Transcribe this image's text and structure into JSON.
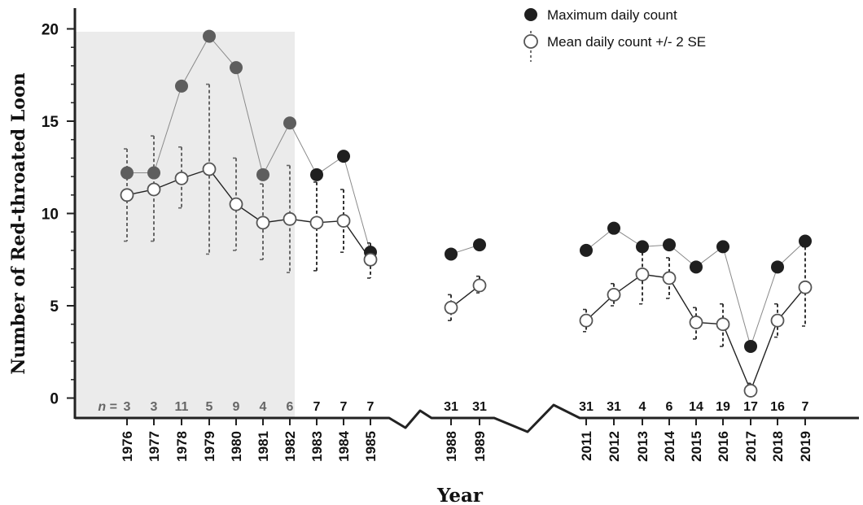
{
  "chart_data": {
    "type": "scatter",
    "title": "",
    "xlabel": "Year",
    "ylabel": "Number of  Red-throated Loon",
    "ylim": [
      0,
      20
    ],
    "yticks": [
      "0",
      "5",
      "10",
      "15",
      "20"
    ],
    "categories": [
      "1976",
      "1977",
      "1978",
      "1979",
      "1980",
      "1981",
      "1982",
      "1983",
      "1984",
      "1985",
      "1988",
      "1989",
      "2011",
      "2012",
      "2013",
      "2014",
      "2015",
      "2016",
      "2017",
      "2018",
      "2019"
    ],
    "n_prefix": "n",
    "n_equals": " = ",
    "n": [
      "3",
      "3",
      "11",
      "5",
      "9",
      "4",
      "6",
      "7",
      "7",
      "7",
      "31",
      "31",
      "31",
      "31",
      "4",
      "6",
      "14",
      "19",
      "17",
      "16",
      "7"
    ],
    "shaded_period": [
      "1976",
      "1982"
    ],
    "axis_breaks": [
      "1985-1988",
      "1989-2011"
    ],
    "series": [
      {
        "name": "Maximum daily count",
        "marker": "filled",
        "values": [
          12.2,
          12.2,
          16.9,
          19.6,
          17.9,
          12.1,
          14.9,
          12.1,
          13.1,
          7.9,
          7.8,
          8.3,
          8.0,
          9.2,
          8.2,
          8.3,
          7.1,
          8.2,
          2.8,
          7.1,
          8.5
        ]
      },
      {
        "name": "Mean daily count +/- 2 SE",
        "marker": "open",
        "values": [
          11.0,
          11.3,
          11.9,
          12.4,
          10.5,
          9.5,
          9.7,
          9.5,
          9.6,
          7.5,
          4.9,
          6.1,
          4.2,
          5.6,
          6.7,
          6.5,
          4.1,
          4.0,
          0.4,
          4.2,
          6.0
        ],
        "lower": [
          8.5,
          8.5,
          10.3,
          7.8,
          8.0,
          7.5,
          6.8,
          6.9,
          7.9,
          6.5,
          4.2,
          5.7,
          3.6,
          5.0,
          5.1,
          5.4,
          3.2,
          2.8,
          0.2,
          3.3,
          3.9
        ],
        "upper": [
          13.5,
          14.2,
          13.6,
          17.0,
          13.0,
          11.6,
          12.6,
          11.7,
          11.3,
          8.4,
          5.6,
          6.6,
          4.8,
          6.2,
          8.2,
          7.6,
          4.9,
          5.1,
          0.8,
          5.1,
          8.2
        ]
      }
    ],
    "groups": [
      [
        0,
        9
      ],
      [
        10,
        11
      ],
      [
        12,
        20
      ]
    ],
    "legend": {
      "position": "top-right"
    },
    "colors": {
      "shade": "#ebebeb",
      "marker_dark": "#1f1f1f",
      "marker_grey": "#5e5e5e",
      "open_stroke": "#555555",
      "line_dark": "#222222",
      "line_light": "#8a8a8a",
      "n_grey": "#666666",
      "n_dark": "#111111"
    }
  }
}
